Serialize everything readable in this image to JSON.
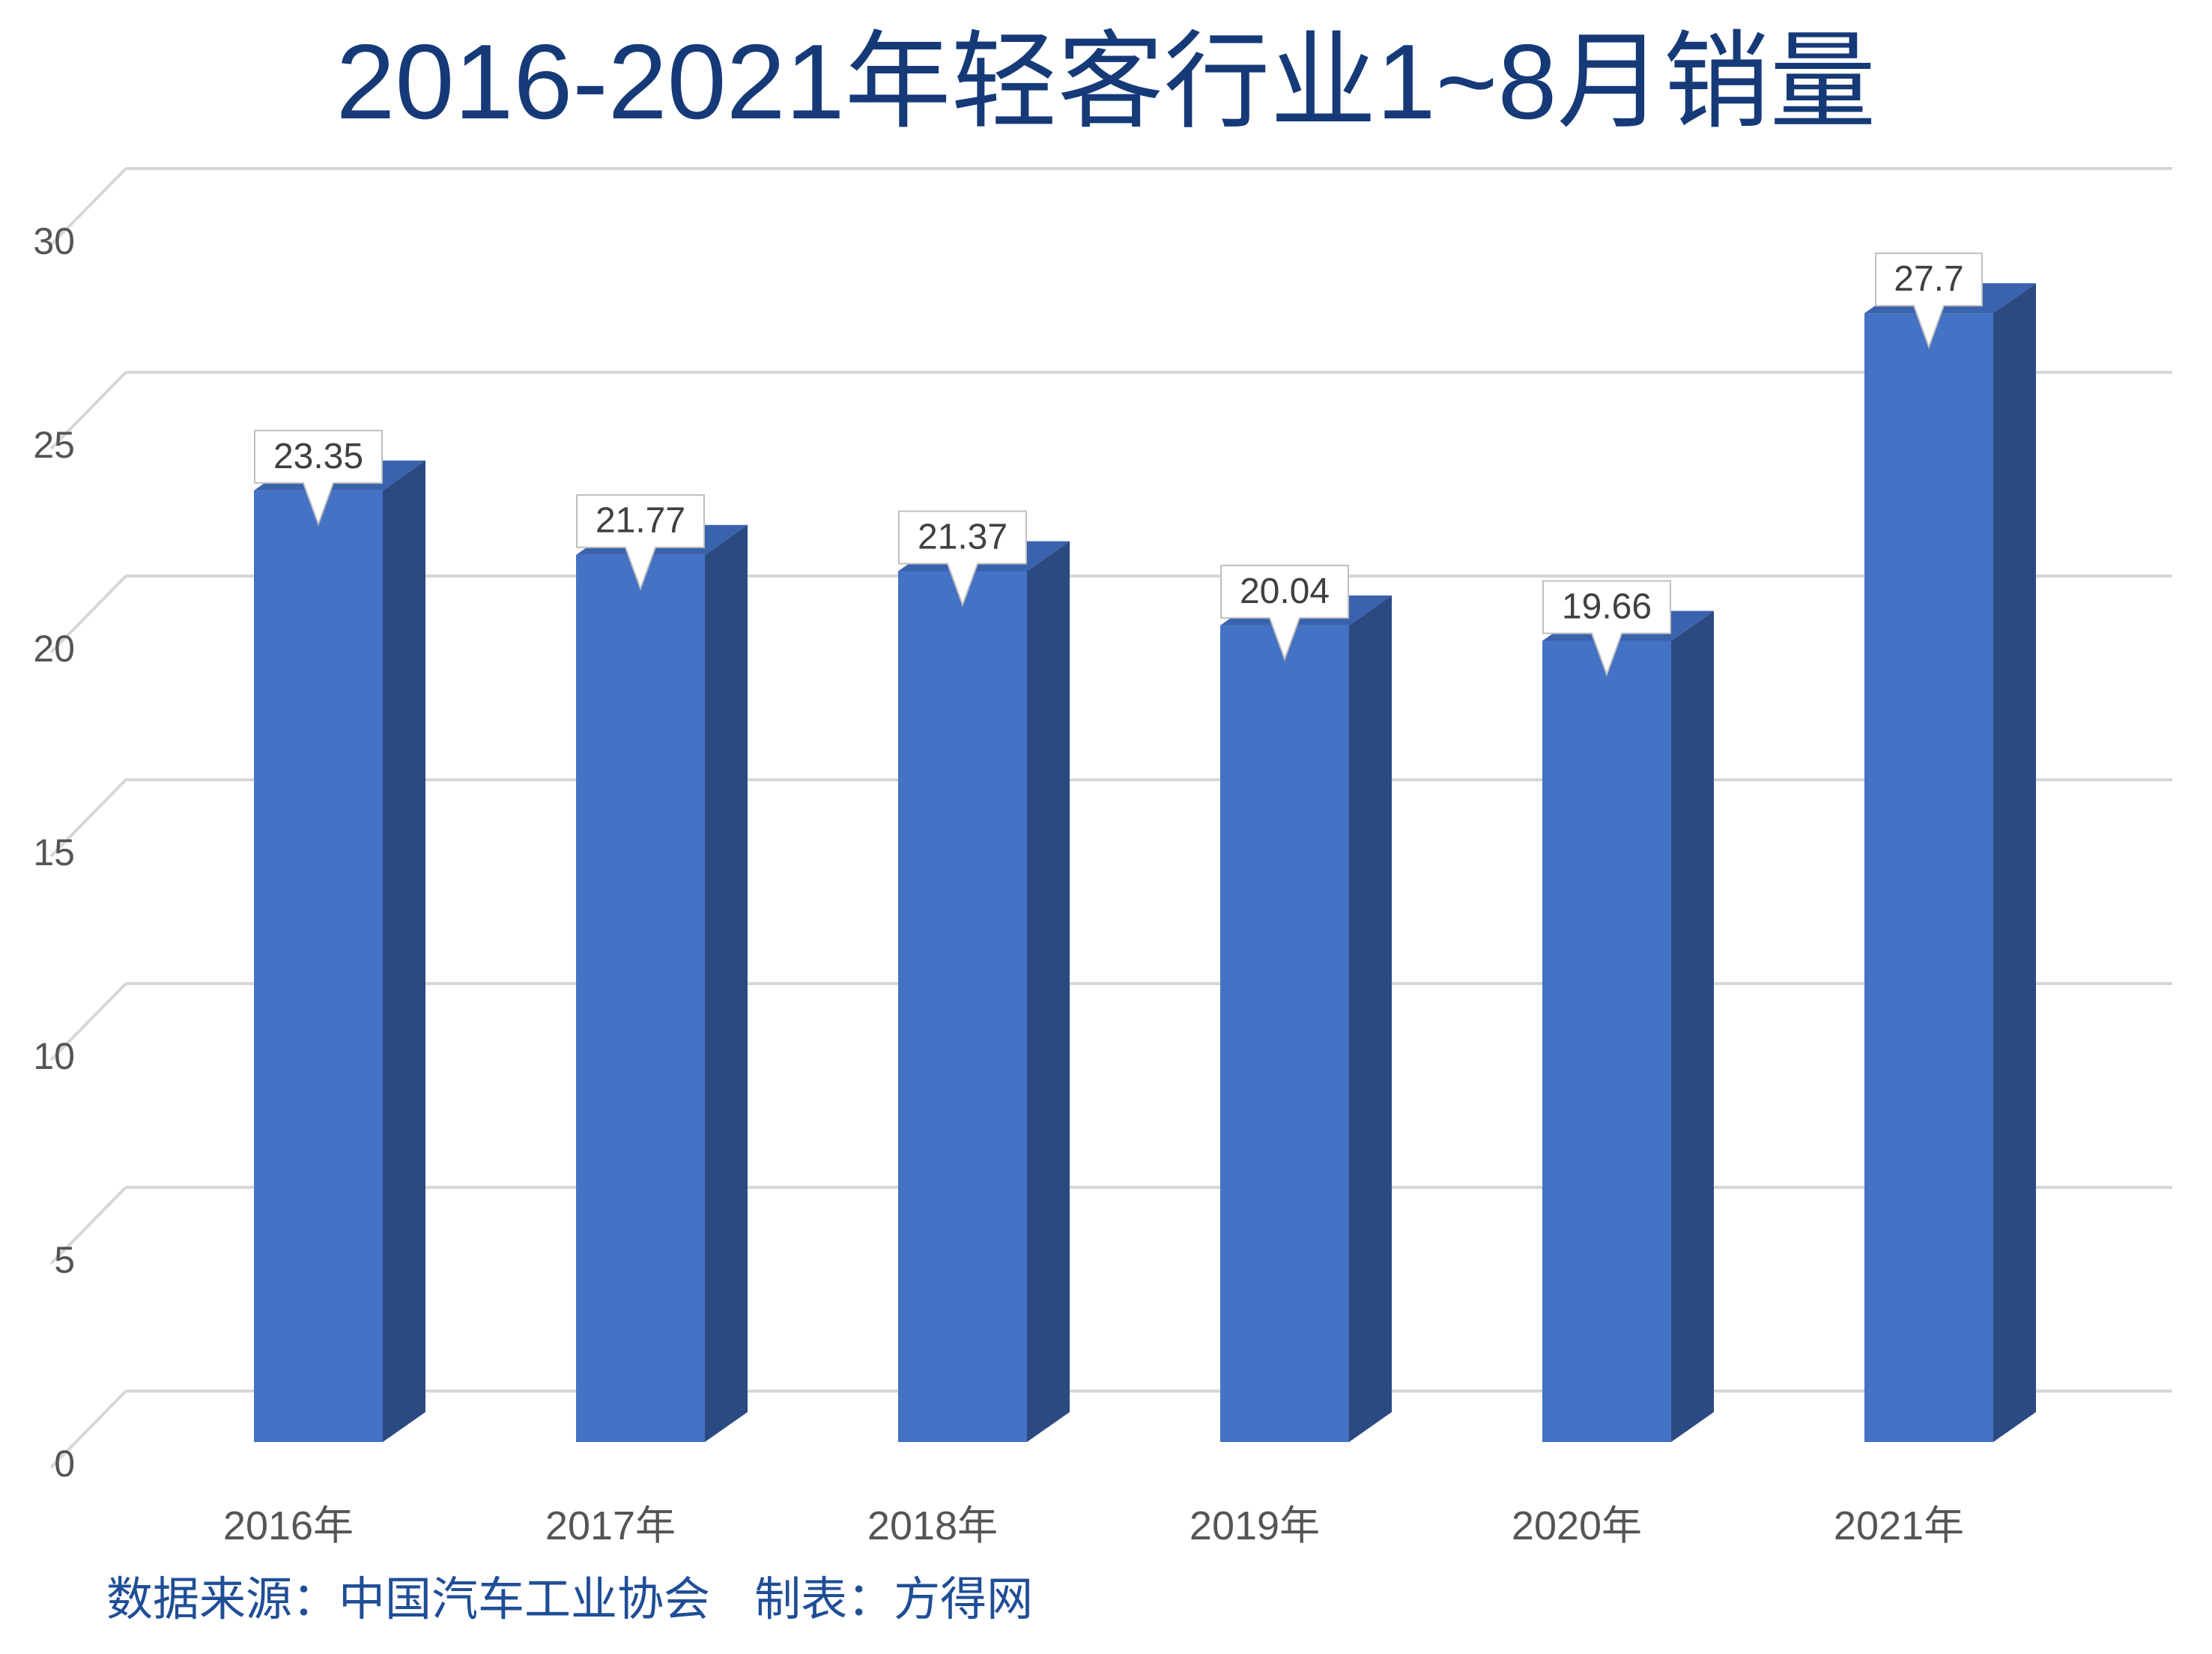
{
  "chart_data": {
    "type": "bar",
    "title": "2016-2021年轻客行业1~8月销量",
    "categories": [
      "2016年",
      "2017年",
      "2018年",
      "2019年",
      "2020年",
      "2021年"
    ],
    "values": [
      23.35,
      21.77,
      21.37,
      20.04,
      19.66,
      27.7
    ],
    "value_labels": [
      "23.35",
      "21.77",
      "21.37",
      "20.04",
      "19.66",
      "27.7"
    ],
    "yticks": [
      "0",
      "5",
      "10",
      "15",
      "20",
      "25",
      "30"
    ],
    "ylim": [
      0,
      30
    ],
    "grid": true,
    "style": "3d-column",
    "colors": {
      "bar_front": "#4472c4",
      "bar_side": "#2c4a82",
      "bar_top": "#3a63ad",
      "title": "#163a78",
      "source": "#1f4e96",
      "grid": "#d6d6d6"
    }
  },
  "footer": {
    "source_text": "数据来源：中国汽车工业协会   制表：方得网"
  }
}
